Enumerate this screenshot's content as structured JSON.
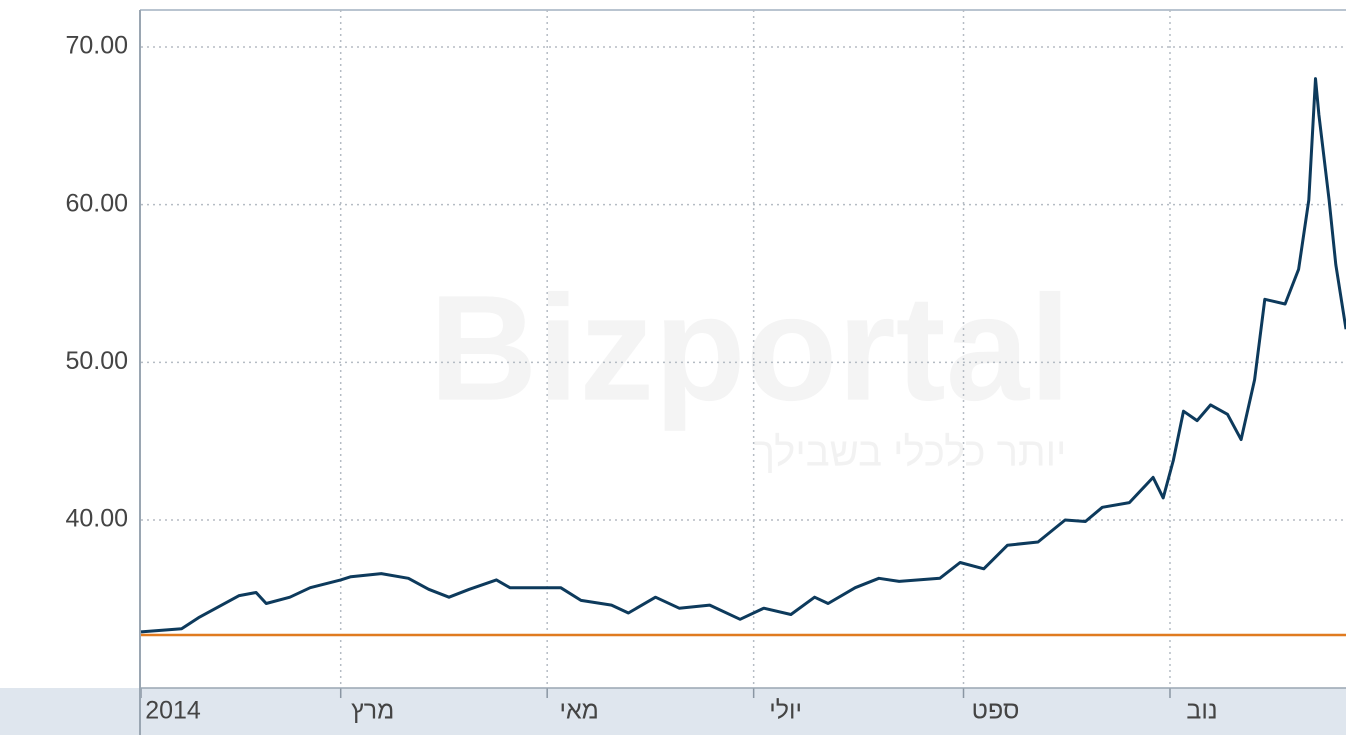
{
  "chart_data": {
    "type": "line",
    "watermark": "Bizportal",
    "watermark_tagline": "יותר כלכלי בשבילך",
    "x": [
      0,
      12,
      17,
      29,
      34,
      37,
      44,
      50,
      59,
      62,
      71,
      79,
      85,
      91,
      97,
      105,
      109,
      124,
      130,
      139,
      144,
      152,
      159,
      168,
      177,
      184,
      192,
      199,
      203,
      211,
      218,
      224,
      236,
      242,
      249,
      256,
      265,
      273,
      279,
      284,
      292,
      299,
      302,
      305,
      308,
      312,
      316,
      321,
      325,
      329,
      332,
      338,
      342,
      345,
      347,
      348,
      351,
      353,
      356
    ],
    "values": [
      32.9,
      33.1,
      33.8,
      35.2,
      35.4,
      34.7,
      35.1,
      35.7,
      36.2,
      36.4,
      36.6,
      36.3,
      35.6,
      35.1,
      35.6,
      36.2,
      35.7,
      35.7,
      34.9,
      34.6,
      34.1,
      35.1,
      34.4,
      34.6,
      33.7,
      34.4,
      34.0,
      35.1,
      34.7,
      35.7,
      36.3,
      36.1,
      36.3,
      37.3,
      36.9,
      38.4,
      38.6,
      40.0,
      39.9,
      40.8,
      41.1,
      42.7,
      41.4,
      43.8,
      46.9,
      46.3,
      47.3,
      46.7,
      45.1,
      48.9,
      54.0,
      53.7,
      55.9,
      60.3,
      68.0,
      65.7,
      60.3,
      56.2,
      52.1
    ],
    "color": "#0d3a5c",
    "reference_line": 32.7,
    "reference_color": "#e07b20",
    "xlim": [
      0,
      356
    ],
    "xticks": [
      {
        "value": 0,
        "label": "2014"
      },
      {
        "value": 59,
        "label": "מרץ"
      },
      {
        "value": 120,
        "label": "מאי"
      },
      {
        "value": 181,
        "label": "יולי"
      },
      {
        "value": 243,
        "label": "ספט"
      },
      {
        "value": 304,
        "label": "נוב"
      }
    ],
    "ylim": [
      29.34,
      72.35
    ],
    "yticks": [
      {
        "value": 40,
        "label": "40.00"
      },
      {
        "value": 50,
        "label": "50.00"
      },
      {
        "value": 60,
        "label": "60.00"
      },
      {
        "value": 70,
        "label": "70.00"
      }
    ],
    "grid": true
  }
}
